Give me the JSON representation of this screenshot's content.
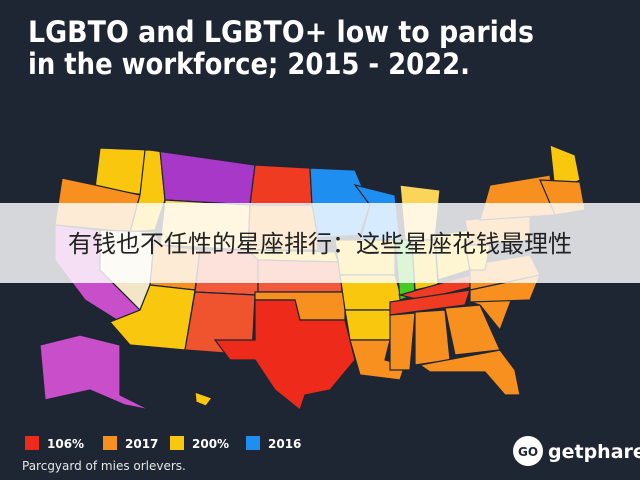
{
  "header": {
    "title_lines": [
      "LGBTO and LGBTO+ low to parids",
      "in the workforce; 2015 - 2022."
    ]
  },
  "banner": {
    "text": "有钱也不任性的星座排行：这些星座花钱最理性"
  },
  "legend": {
    "items": [
      {
        "label": "106%",
        "color": "#ee2a1b"
      },
      {
        "label": "2017",
        "color": "#f7901e"
      },
      {
        "label": "200%",
        "color": "#f9c80e"
      },
      {
        "label": "2016",
        "color": "#1e8ff0"
      }
    ]
  },
  "footnote": "Parcgyard of mies orlevers.",
  "brand": {
    "logo": "GO",
    "name": "getphare"
  }
}
